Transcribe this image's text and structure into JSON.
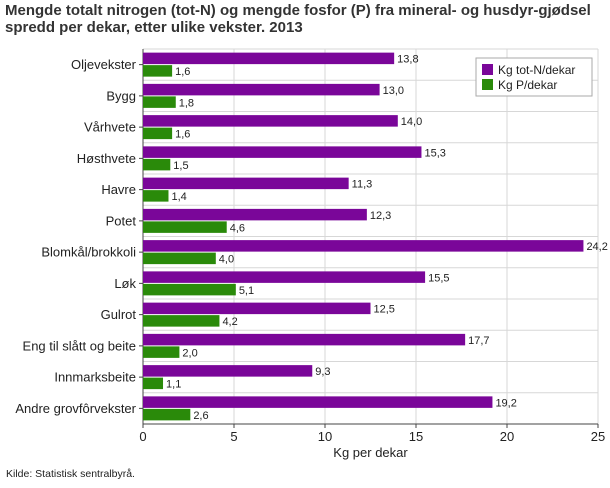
{
  "title": "Mengde totalt nitrogen (tot-N) og mengde fosfor (P) fra mineral- og husdyr-gjødsel spredd per dekar, etter ulike vekster. 2013",
  "source": "Kilde: Statistisk sentralbyrå.",
  "colors": {
    "nitrogen": "#7a0699",
    "fosfor": "#2a8a0a",
    "grid": "#d7d7d7",
    "axis": "#444444"
  },
  "chart_data": {
    "type": "bar",
    "orientation": "horizontal",
    "title": "Mengde totalt nitrogen (tot-N) og mengde fosfor (P) fra mineral- og husdyr-gjødsel spredd per dekar, etter ulike vekster. 2013",
    "xlabel": "Kg per dekar",
    "ylabel": "",
    "xlim": [
      0,
      25
    ],
    "xticks": [
      0,
      5,
      10,
      15,
      20,
      25
    ],
    "grid": true,
    "legend_position": "top-right",
    "categories": [
      "Oljevekster",
      "Bygg",
      "Vårhvete",
      "Høsthvete",
      "Havre",
      "Potet",
      "Blomkål/brokkoli",
      "Løk",
      "Gulrot",
      "Eng til slått og beite",
      "Innmarksbeite",
      "Andre grovfôrvekster"
    ],
    "series": [
      {
        "name": "Kg tot-N/dekar",
        "color": "#7a0699",
        "values": [
          13.8,
          13.0,
          14.0,
          15.3,
          11.3,
          12.3,
          24.2,
          15.5,
          12.5,
          17.7,
          9.3,
          19.2
        ]
      },
      {
        "name": "Kg P/dekar",
        "color": "#2a8a0a",
        "values": [
          1.6,
          1.8,
          1.6,
          1.5,
          1.4,
          4.6,
          4.0,
          5.1,
          4.2,
          2.0,
          1.1,
          2.6
        ]
      }
    ]
  }
}
